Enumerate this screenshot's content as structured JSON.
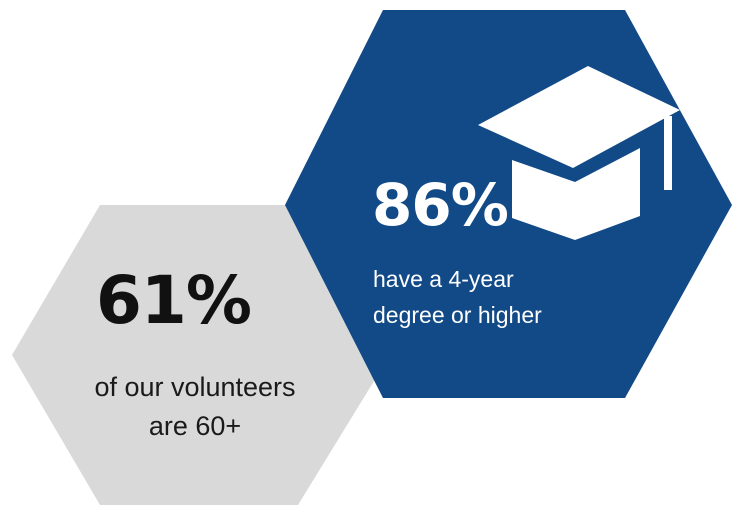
{
  "colors": {
    "grey_hex": "#d9d9d9",
    "blue_hex": "#114a86",
    "dark_text": "#111111",
    "light_text": "#ffffff"
  },
  "stat_left": {
    "value": "61%",
    "line1": "of our volunteers",
    "line2": "are 60+"
  },
  "stat_right": {
    "value": "86%",
    "line1": "have a 4-year",
    "line2": "degree or higher",
    "icon": "graduation-cap-icon"
  }
}
